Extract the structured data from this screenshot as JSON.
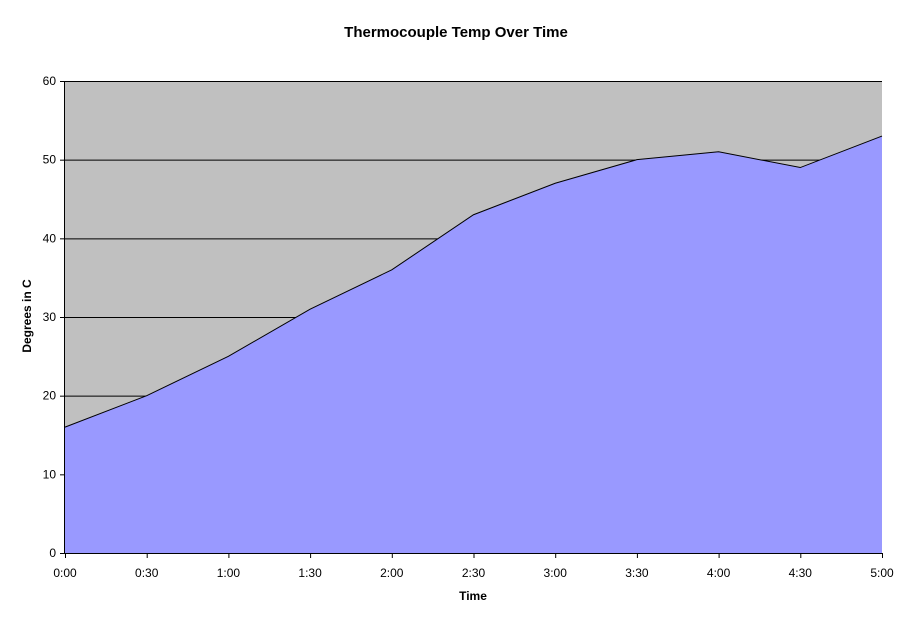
{
  "chart_data": {
    "type": "area",
    "title": "Thermocouple Temp Over Time",
    "xlabel": "Time",
    "ylabel": "Degrees in C",
    "categories": [
      "0:00",
      "0:30",
      "1:00",
      "1:30",
      "2:00",
      "2:30",
      "3:00",
      "3:30",
      "4:00",
      "4:30",
      "5:00"
    ],
    "series": [
      {
        "values": [
          16,
          20,
          25,
          31,
          36,
          43,
          47,
          50,
          51,
          49,
          53
        ]
      }
    ],
    "ylim": [
      0,
      60
    ],
    "yticks": [
      0,
      10,
      20,
      30,
      40,
      50,
      60
    ],
    "grid": true,
    "legend": "none",
    "colors": {
      "area_fill": "#9999ff",
      "plot_background": "#c0c0c0",
      "line": "#000000",
      "gridline": "#000000"
    }
  }
}
